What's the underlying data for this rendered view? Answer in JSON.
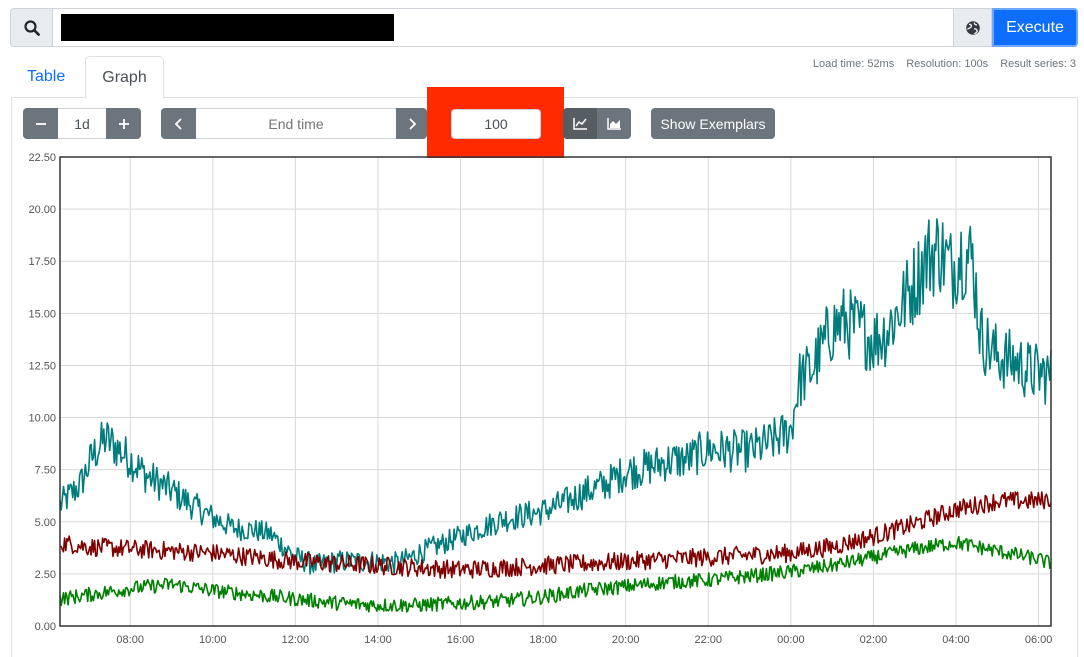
{
  "query": {
    "expression_value": "",
    "execute_label": "Execute"
  },
  "tabs": [
    {
      "label": "Table",
      "active": false
    },
    {
      "label": "Graph",
      "active": true
    }
  ],
  "stats": {
    "load_time": "Load time: 52ms",
    "resolution": "Resolution: 100s",
    "result_series": "Result series: 3"
  },
  "controls": {
    "range_value": "1d",
    "end_time_placeholder": "End time",
    "resolution_value": "100",
    "show_exemplars_label": "Show Exemplars",
    "chart_mode": "line"
  },
  "icons": {
    "search": "search-icon",
    "explorer": "globe-icon",
    "minus": "minus-icon",
    "plus": "plus-icon",
    "prev": "chevron-left-icon",
    "next": "chevron-right-icon",
    "line_chart": "line-chart-icon",
    "stacked_chart": "area-chart-icon"
  },
  "colors": {
    "accent": "#0d6efd",
    "button_grey": "#6c757d",
    "highlight": "#ff2a00"
  },
  "chart_data": {
    "type": "line",
    "x_tick_labels": [
      "08:00",
      "10:00",
      "12:00",
      "14:00",
      "16:00",
      "18:00",
      "20:00",
      "22:00",
      "00:00",
      "02:00",
      "04:00",
      "06:00"
    ],
    "x_tick_hours": [
      8,
      10,
      12,
      14,
      16,
      18,
      20,
      22,
      24,
      26,
      28,
      30
    ],
    "xlim_hours": [
      6.3,
      30.3
    ],
    "y_tick_labels": [
      "0.00",
      "2.50",
      "5.00",
      "7.50",
      "10.00",
      "12.50",
      "15.00",
      "17.50",
      "20.00",
      "22.50"
    ],
    "ylim": [
      0,
      22.5
    ],
    "grid": true,
    "legend": "none",
    "series": [
      {
        "color": "#007c7c",
        "x": [
          6.3,
          6.8,
          7.1,
          7.4,
          8.0,
          8.4,
          9.0,
          9.5,
          10.0,
          10.5,
          11.0,
          11.4,
          12.0,
          12.5,
          13.0,
          13.5,
          14.0,
          14.5,
          15.0,
          15.5,
          16.0,
          16.5,
          17.0,
          17.5,
          18.0,
          18.5,
          19.0,
          19.5,
          20.0,
          20.5,
          21.0,
          21.5,
          22.0,
          22.5,
          23.0,
          23.5,
          24.0,
          24.2,
          24.5,
          25.0,
          25.3,
          25.7,
          26.0,
          26.3,
          26.6,
          27.0,
          27.3,
          27.6,
          27.9,
          28.1,
          28.4,
          28.6,
          28.9,
          29.2,
          29.5,
          29.8,
          30.1,
          30.3
        ],
        "values": [
          5.8,
          6.8,
          8.2,
          9.0,
          8.0,
          7.2,
          6.5,
          5.8,
          5.2,
          4.7,
          4.6,
          4.4,
          3.3,
          2.9,
          3.1,
          3.1,
          3.1,
          3.0,
          3.5,
          3.9,
          4.3,
          4.7,
          5.1,
          5.3,
          5.5,
          5.9,
          6.4,
          6.8,
          7.4,
          7.6,
          7.9,
          8.0,
          8.5,
          8.4,
          8.4,
          8.8,
          9.4,
          11.8,
          12.3,
          14.3,
          14.6,
          14.2,
          13.7,
          14.1,
          15.1,
          16.5,
          17.7,
          18.1,
          17.1,
          17.9,
          17.6,
          13.9,
          13.1,
          12.8,
          12.6,
          12.2,
          12.1,
          12.0
        ]
      },
      {
        "color": "#800000",
        "x": [
          6.3,
          7.0,
          8.0,
          9.0,
          10.0,
          11.0,
          12.0,
          13.0,
          14.0,
          15.0,
          16.0,
          17.0,
          18.0,
          19.0,
          20.0,
          21.0,
          22.0,
          23.0,
          24.0,
          25.0,
          26.0,
          27.0,
          28.0,
          29.0,
          30.0,
          30.3
        ],
        "values": [
          4.0,
          3.8,
          3.7,
          3.6,
          3.5,
          3.3,
          3.1,
          3.0,
          2.9,
          2.8,
          2.7,
          2.8,
          2.9,
          3.0,
          3.1,
          3.2,
          3.3,
          3.4,
          3.5,
          3.8,
          4.3,
          4.9,
          5.6,
          6.0,
          6.0,
          6.1
        ]
      },
      {
        "color": "#008000",
        "x": [
          6.3,
          7.0,
          8.0,
          9.0,
          10.0,
          11.0,
          12.0,
          13.0,
          14.0,
          15.0,
          16.0,
          17.0,
          18.0,
          19.0,
          20.0,
          21.0,
          22.0,
          23.0,
          24.0,
          25.0,
          26.0,
          27.0,
          28.0,
          29.0,
          30.0,
          30.3
        ],
        "values": [
          1.3,
          1.5,
          1.8,
          2.0,
          1.7,
          1.5,
          1.3,
          1.1,
          1.0,
          1.0,
          1.1,
          1.2,
          1.4,
          1.7,
          1.9,
          2.1,
          2.2,
          2.4,
          2.6,
          2.9,
          3.3,
          3.7,
          4.0,
          3.6,
          3.2,
          3.0
        ]
      }
    ]
  }
}
